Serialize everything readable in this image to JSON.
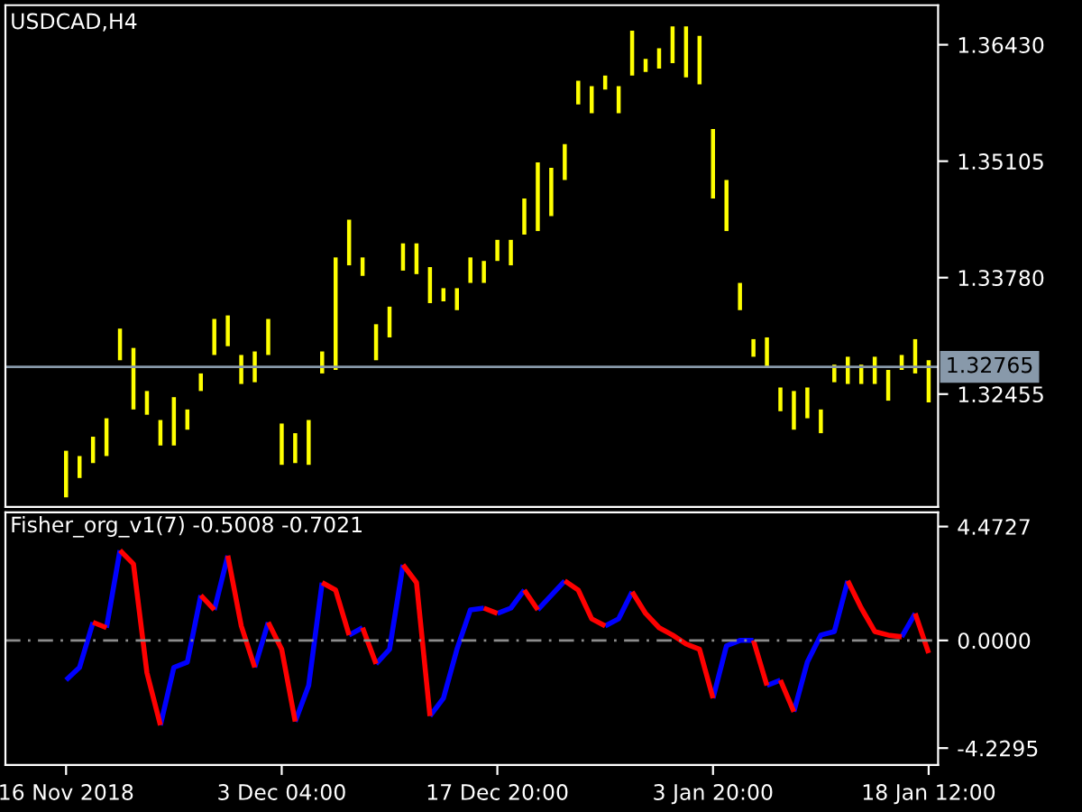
{
  "chart_data": [
    {
      "type": "bar",
      "title": "USDCAD,H4",
      "categories": [
        null,
        null,
        null,
        null,
        null,
        null,
        null,
        null,
        null,
        null,
        null,
        null,
        null,
        null,
        null,
        null,
        null,
        null,
        null,
        null,
        null,
        null,
        null,
        null,
        null,
        null,
        null,
        null,
        null,
        null,
        null,
        null,
        null,
        null,
        null,
        null,
        null,
        null,
        null,
        null,
        null,
        null,
        null,
        null,
        null,
        null,
        null,
        null,
        null,
        null,
        null,
        null,
        null,
        null,
        null,
        null,
        null,
        null,
        null,
        null,
        null,
        null,
        null,
        null,
        null
      ],
      "base": [
        1.3128,
        1.315,
        1.3167,
        1.3175,
        1.3284,
        1.3228,
        1.3222,
        1.3187,
        1.3187,
        1.3205,
        1.3249,
        1.329,
        1.33,
        1.3257,
        1.3259,
        1.329,
        1.3165,
        1.3167,
        1.3165,
        1.3269,
        1.3273,
        1.3392,
        1.338,
        1.3284,
        1.331,
        1.3386,
        1.3382,
        1.3349,
        1.3351,
        1.3341,
        1.3372,
        1.3372,
        1.3397,
        1.3392,
        1.3427,
        1.3431,
        1.3448,
        1.3489,
        1.3575,
        1.3565,
        1.3592,
        1.3565,
        1.3608,
        1.3612,
        1.3616,
        1.3622,
        1.3606,
        1.3598,
        1.3468,
        1.3431,
        1.3341,
        1.3288,
        1.3277,
        1.3226,
        1.3205,
        1.3218,
        1.3201,
        1.3259,
        1.3257,
        1.3257,
        1.3257,
        1.3238,
        1.3273,
        1.3269,
        1.3236
      ],
      "values": [
        0.0053,
        0.0025,
        0.003,
        0.0043,
        0.0036,
        0.007,
        0.0027,
        0.0029,
        0.0055,
        0.0023,
        0.002,
        0.0041,
        0.0035,
        0.0033,
        0.0035,
        0.0041,
        0.0047,
        0.0034,
        0.0051,
        0.0025,
        0.0128,
        0.0052,
        0.0021,
        0.0041,
        0.0035,
        0.0031,
        0.0035,
        0.0041,
        0.0015,
        0.0025,
        0.0029,
        0.0025,
        0.0024,
        0.0029,
        0.0041,
        0.0078,
        0.0055,
        0.0041,
        0.0027,
        0.0031,
        0.0016,
        0.0031,
        0.0051,
        0.0015,
        0.0023,
        0.0042,
        0.0058,
        0.0055,
        0.0079,
        0.0058,
        0.0031,
        0.002,
        0.0033,
        0.0027,
        0.0044,
        0.0035,
        0.0027,
        0.002,
        0.0031,
        0.0022,
        0.0031,
        0.0035,
        0.0017,
        0.0039,
        0.0048
      ],
      "color": "#ffff00",
      "ylim": [
        1.3117,
        1.3688
      ],
      "yticks": [
        {
          "value": 1.3643,
          "label": "1.36430"
        },
        {
          "value": 1.35105,
          "label": "1.35105"
        },
        {
          "value": 1.3378,
          "label": "1.33780"
        },
        {
          "value": 1.32455,
          "label": "1.32455"
        }
      ],
      "ref_lines": [
        {
          "axis": "y",
          "value": 1.32765,
          "label": "1.32765",
          "color": "#8899aa"
        }
      ],
      "tick_labels": "y",
      "grid": false
    },
    {
      "type": "line",
      "title": "Fisher_org_v1(7) -0.5008 -0.7021",
      "categories": [
        "16 Nov 2018",
        null,
        null,
        null,
        null,
        null,
        null,
        null,
        null,
        null,
        null,
        null,
        null,
        null,
        null,
        null,
        "3 Dec 04:00",
        null,
        null,
        null,
        null,
        null,
        null,
        null,
        null,
        null,
        null,
        null,
        null,
        null,
        null,
        null,
        "17 Dec 20:00",
        null,
        null,
        null,
        null,
        null,
        null,
        null,
        null,
        null,
        null,
        null,
        null,
        null,
        null,
        null,
        "3 Jan 20:00",
        null,
        null,
        null,
        null,
        null,
        null,
        null,
        null,
        null,
        null,
        null,
        null,
        null,
        null,
        null,
        "18 Jan 12:00"
      ],
      "series": [
        {
          "color": "#0000ff",
          "values": [
            -1.56,
            -1.06,
            0.71,
            null,
            null,
            null,
            null,
            -3.33,
            -1.06,
            -0.85,
            1.77,
            null,
            null,
            null,
            -1.06,
            0.71,
            null,
            null,
            null,
            null,
            null,
            0.21,
            0.5,
            null,
            null,
            null,
            null,
            -2.97,
            -2.27,
            -0.35,
            1.2,
            1.27,
            null,
            null,
            null,
            null,
            null,
            null,
            null,
            null,
            null,
            null,
            null,
            null,
            null,
            null,
            null,
            null,
            -2.27,
            -0.21,
            0.0,
            0.0,
            null,
            null,
            -2.8,
            -0.85,
            0.21,
            0.35,
            2.34,
            null,
            null,
            null,
            null,
            null,
            null
          ]
        },
        {
          "color": "#0000fe",
          "values": [
            null,
            null,
            null,
            0.5,
            3.54,
            null,
            null,
            null,
            null,
            null,
            null,
            1.2,
            3.33,
            null,
            null,
            null,
            null,
            -3.19,
            -1.77,
            2.27,
            null,
            null,
            null,
            -0.92,
            -0.35,
            2.97,
            null,
            null,
            null,
            null,
            null,
            null,
            1.06,
            1.27,
            1.98,
            null,
            null,
            null,
            null,
            null,
            0.57,
            0.85,
            1.91,
            null,
            null,
            null,
            null,
            null,
            null,
            null,
            null,
            null,
            -1.77,
            -1.56,
            null,
            null,
            null,
            null,
            null,
            null,
            null,
            null,
            0.14,
            1.06,
            null
          ]
        },
        {
          "color": "#0000fd",
          "values": [
            null,
            null,
            null,
            null,
            null,
            null,
            null,
            null,
            null,
            null,
            null,
            null,
            null,
            null,
            null,
            null,
            null,
            null,
            null,
            null,
            null,
            null,
            null,
            null,
            null,
            null,
            null,
            null,
            null,
            null,
            null,
            null,
            null,
            null,
            null,
            1.2,
            1.77,
            2.34,
            null,
            null,
            null,
            null,
            null,
            null,
            null,
            null,
            null,
            null,
            null,
            null,
            null,
            null,
            null,
            null,
            null,
            null,
            null,
            null,
            null,
            null,
            null,
            null,
            null,
            null,
            null
          ]
        },
        {
          "color": "#ff0000",
          "values": [
            null,
            null,
            0.71,
            0.5,
            null,
            null,
            null,
            null,
            null,
            null,
            1.77,
            1.2,
            null,
            null,
            null,
            0.71,
            -0.35,
            -3.19,
            null,
            null,
            null,
            null,
            0.5,
            -0.92,
            null,
            null,
            null,
            null,
            null,
            null,
            null,
            1.27,
            1.06,
            null,
            null,
            null,
            null,
            2.34,
            1.98,
            0.85,
            0.57,
            null,
            null,
            null,
            null,
            null,
            null,
            null,
            null,
            null,
            null,
            0.0,
            -1.77,
            null,
            null,
            null,
            null,
            null,
            2.34,
            1.27,
            0.35,
            0.21,
            0.14,
            null,
            null
          ]
        },
        {
          "color": "#fe0000",
          "values": [
            null,
            null,
            null,
            null,
            3.54,
            3.0,
            -1.27,
            -3.33,
            null,
            null,
            null,
            null,
            3.33,
            0.57,
            -1.06,
            null,
            null,
            null,
            null,
            2.27,
            1.98,
            0.21,
            null,
            null,
            null,
            2.97,
            2.27,
            -2.97,
            null,
            null,
            null,
            null,
            null,
            null,
            1.98,
            1.2,
            null,
            null,
            null,
            null,
            null,
            null,
            1.91,
            1.06,
            0.5,
            0.21,
            -0.14,
            -0.35,
            -2.27,
            null,
            null,
            null,
            null,
            -1.56,
            -2.8,
            null,
            null,
            null,
            null,
            null,
            null,
            null,
            null,
            1.06,
            -0.5
          ]
        }
      ],
      "ylim": [
        -4.89,
        5.03
      ],
      "yticks": [
        {
          "value": 4.4727,
          "label": "4.4727"
        },
        {
          "value": 0,
          "label": "0.0000"
        },
        {
          "value": -4.2295,
          "label": "-4.2295"
        }
      ],
      "ref_lines": [
        {
          "axis": "y",
          "value": 0,
          "color": "#8c8c8c",
          "line_style": "dashed"
        }
      ],
      "grid": false
    }
  ]
}
